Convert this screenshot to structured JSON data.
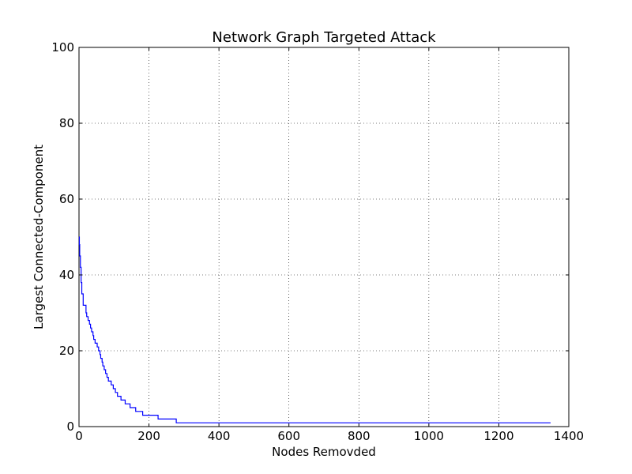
{
  "chart_data": {
    "type": "line",
    "title": "Network Graph Targeted Attack",
    "xlabel": "Nodes Removded",
    "ylabel": "Largest Connected-Component",
    "xlim": [
      0,
      1400
    ],
    "ylim": [
      0,
      100
    ],
    "xticks": [
      0,
      200,
      400,
      600,
      800,
      1000,
      1200,
      1400
    ],
    "yticks": [
      0,
      20,
      40,
      60,
      80,
      100
    ],
    "grid": true,
    "series": [
      {
        "color": "#0000ff",
        "step": true,
        "points": [
          [
            0,
            50
          ],
          [
            1,
            48
          ],
          [
            2,
            45
          ],
          [
            4,
            42
          ],
          [
            6,
            38
          ],
          [
            8,
            35
          ],
          [
            12,
            32
          ],
          [
            20,
            30
          ],
          [
            22,
            29
          ],
          [
            26,
            28
          ],
          [
            30,
            27
          ],
          [
            33,
            26
          ],
          [
            36,
            25
          ],
          [
            40,
            24
          ],
          [
            42,
            23
          ],
          [
            46,
            22
          ],
          [
            52,
            21
          ],
          [
            56,
            20
          ],
          [
            60,
            19
          ],
          [
            62,
            18
          ],
          [
            66,
            17
          ],
          [
            68,
            16
          ],
          [
            72,
            15
          ],
          [
            76,
            14
          ],
          [
            80,
            13
          ],
          [
            84,
            12
          ],
          [
            92,
            11
          ],
          [
            98,
            10
          ],
          [
            104,
            9
          ],
          [
            110,
            8
          ],
          [
            120,
            7
          ],
          [
            132,
            6
          ],
          [
            146,
            5
          ],
          [
            162,
            4
          ],
          [
            182,
            3
          ],
          [
            226,
            2
          ],
          [
            278,
            1
          ],
          [
            1348,
            1
          ]
        ]
      }
    ]
  }
}
